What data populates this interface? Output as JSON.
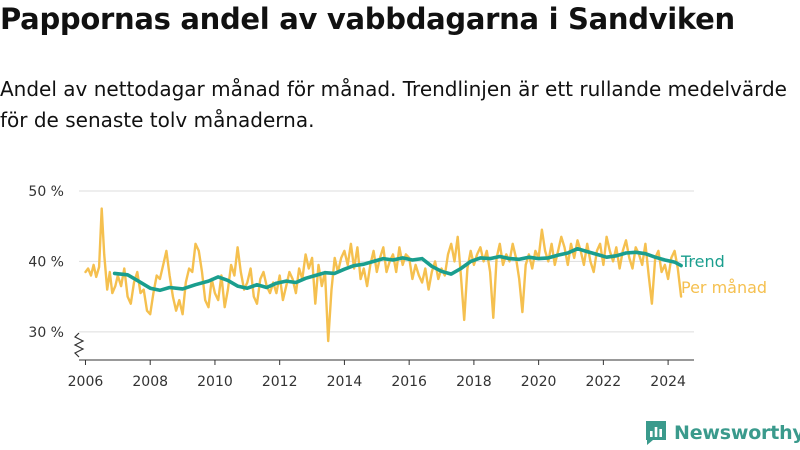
{
  "title": "Pappornas andel av vabbdagarna i Sandviken",
  "subtitle": "Andel av nettodagar månad för månad. Trendlinjen är ett rullande medelvärde för de senaste tolv månaderna.",
  "brand": {
    "name": "Newsworthy",
    "icon": "bar-chart-logo-icon"
  },
  "colors": {
    "trend": "#1a9e8e",
    "monthly": "#f5c04f",
    "grid": "#dddddd",
    "axis": "#333333"
  },
  "chart_data": {
    "type": "line",
    "y_unit": "%",
    "ylim": [
      26,
      50
    ],
    "axis_break": true,
    "y_ticks": [
      30,
      40,
      50
    ],
    "y_tick_labels": [
      "30 %",
      "40 %",
      "50 %"
    ],
    "x_range": [
      2005.8,
      2024.8
    ],
    "x_ticks": [
      2006,
      2008,
      2010,
      2012,
      2014,
      2016,
      2018,
      2020,
      2022,
      2024
    ],
    "x_tick_labels": [
      "2006",
      "2008",
      "2010",
      "2012",
      "2014",
      "2016",
      "2018",
      "2020",
      "2022",
      "2024"
    ],
    "grid": "horizontal",
    "legend_placement": "right, at line ends",
    "series": [
      {
        "name": "Trend",
        "points": [
          [
            2006.9,
            38.3
          ],
          [
            2007.3,
            38.1
          ],
          [
            2007.6,
            37.3
          ],
          [
            2008.0,
            36.2
          ],
          [
            2008.3,
            35.9
          ],
          [
            2008.6,
            36.3
          ],
          [
            2009.0,
            36.1
          ],
          [
            2009.4,
            36.7
          ],
          [
            2009.8,
            37.2
          ],
          [
            2010.1,
            37.8
          ],
          [
            2010.4,
            37.3
          ],
          [
            2010.7,
            36.5
          ],
          [
            2011.0,
            36.2
          ],
          [
            2011.3,
            36.7
          ],
          [
            2011.6,
            36.3
          ],
          [
            2011.9,
            36.9
          ],
          [
            2012.2,
            37.2
          ],
          [
            2012.5,
            37.0
          ],
          [
            2012.8,
            37.6
          ],
          [
            2013.1,
            38.0
          ],
          [
            2013.4,
            38.4
          ],
          [
            2013.7,
            38.3
          ],
          [
            2014.0,
            38.9
          ],
          [
            2014.3,
            39.4
          ],
          [
            2014.6,
            39.6
          ],
          [
            2014.9,
            40.0
          ],
          [
            2015.2,
            40.4
          ],
          [
            2015.5,
            40.2
          ],
          [
            2015.8,
            40.5
          ],
          [
            2016.1,
            40.2
          ],
          [
            2016.4,
            40.4
          ],
          [
            2016.7,
            39.3
          ],
          [
            2017.0,
            38.6
          ],
          [
            2017.3,
            38.2
          ],
          [
            2017.6,
            39.0
          ],
          [
            2017.9,
            40.0
          ],
          [
            2018.2,
            40.5
          ],
          [
            2018.5,
            40.4
          ],
          [
            2018.8,
            40.7
          ],
          [
            2019.1,
            40.4
          ],
          [
            2019.4,
            40.3
          ],
          [
            2019.7,
            40.6
          ],
          [
            2020.0,
            40.4
          ],
          [
            2020.3,
            40.5
          ],
          [
            2020.6,
            40.9
          ],
          [
            2020.9,
            41.2
          ],
          [
            2021.2,
            41.8
          ],
          [
            2021.5,
            41.4
          ],
          [
            2021.8,
            41.0
          ],
          [
            2022.1,
            40.6
          ],
          [
            2022.4,
            40.8
          ],
          [
            2022.7,
            41.2
          ],
          [
            2023.0,
            41.3
          ],
          [
            2023.3,
            41.1
          ],
          [
            2023.6,
            40.6
          ],
          [
            2023.9,
            40.2
          ],
          [
            2024.2,
            39.9
          ],
          [
            2024.4,
            39.4
          ]
        ]
      },
      {
        "name": "Per månad",
        "points": [
          [
            2006.0,
            38.5
          ],
          [
            2006.08,
            39.0
          ],
          [
            2006.17,
            38.0
          ],
          [
            2006.25,
            39.5
          ],
          [
            2006.33,
            37.8
          ],
          [
            2006.42,
            39.2
          ],
          [
            2006.5,
            47.5
          ],
          [
            2006.58,
            41.0
          ],
          [
            2006.67,
            36.0
          ],
          [
            2006.75,
            38.5
          ],
          [
            2006.83,
            35.5
          ],
          [
            2006.92,
            36.5
          ],
          [
            2007.0,
            38.0
          ],
          [
            2007.1,
            36.5
          ],
          [
            2007.2,
            39.0
          ],
          [
            2007.3,
            35.0
          ],
          [
            2007.4,
            34.0
          ],
          [
            2007.5,
            37.0
          ],
          [
            2007.6,
            38.5
          ],
          [
            2007.7,
            35.5
          ],
          [
            2007.8,
            36.0
          ],
          [
            2007.9,
            33.0
          ],
          [
            2008.0,
            32.5
          ],
          [
            2008.1,
            35.5
          ],
          [
            2008.2,
            38.0
          ],
          [
            2008.3,
            37.5
          ],
          [
            2008.4,
            39.5
          ],
          [
            2008.5,
            41.5
          ],
          [
            2008.6,
            38.0
          ],
          [
            2008.7,
            35.0
          ],
          [
            2008.8,
            33.0
          ],
          [
            2008.9,
            34.5
          ],
          [
            2009.0,
            32.5
          ],
          [
            2009.1,
            37.0
          ],
          [
            2009.2,
            39.0
          ],
          [
            2009.3,
            38.5
          ],
          [
            2009.4,
            42.5
          ],
          [
            2009.5,
            41.5
          ],
          [
            2009.6,
            38.5
          ],
          [
            2009.7,
            34.5
          ],
          [
            2009.8,
            33.5
          ],
          [
            2009.9,
            37.5
          ],
          [
            2010.0,
            35.5
          ],
          [
            2010.1,
            34.5
          ],
          [
            2010.2,
            38.0
          ],
          [
            2010.3,
            33.5
          ],
          [
            2010.4,
            36.0
          ],
          [
            2010.5,
            39.5
          ],
          [
            2010.6,
            38.0
          ],
          [
            2010.7,
            42.0
          ],
          [
            2010.8,
            38.5
          ],
          [
            2010.9,
            36.0
          ],
          [
            2011.0,
            37.0
          ],
          [
            2011.1,
            39.0
          ],
          [
            2011.2,
            35.0
          ],
          [
            2011.3,
            34.0
          ],
          [
            2011.4,
            37.5
          ],
          [
            2011.5,
            38.5
          ],
          [
            2011.6,
            36.5
          ],
          [
            2011.7,
            35.5
          ],
          [
            2011.8,
            37.0
          ],
          [
            2011.9,
            35.5
          ],
          [
            2012.0,
            38.0
          ],
          [
            2012.1,
            34.5
          ],
          [
            2012.2,
            36.5
          ],
          [
            2012.3,
            38.5
          ],
          [
            2012.4,
            37.5
          ],
          [
            2012.5,
            35.5
          ],
          [
            2012.6,
            39.0
          ],
          [
            2012.7,
            37.5
          ],
          [
            2012.8,
            41.0
          ],
          [
            2012.9,
            39.0
          ],
          [
            2013.0,
            40.5
          ],
          [
            2013.1,
            34.0
          ],
          [
            2013.2,
            39.5
          ],
          [
            2013.3,
            36.5
          ],
          [
            2013.4,
            38.5
          ],
          [
            2013.5,
            28.7
          ],
          [
            2013.6,
            36.0
          ],
          [
            2013.7,
            40.5
          ],
          [
            2013.8,
            38.5
          ],
          [
            2013.9,
            40.5
          ],
          [
            2014.0,
            41.5
          ],
          [
            2014.1,
            39.5
          ],
          [
            2014.2,
            42.5
          ],
          [
            2014.3,
            39.0
          ],
          [
            2014.4,
            42.0
          ],
          [
            2014.5,
            37.5
          ],
          [
            2014.6,
            39.0
          ],
          [
            2014.7,
            36.5
          ],
          [
            2014.8,
            39.5
          ],
          [
            2014.9,
            41.5
          ],
          [
            2015.0,
            38.5
          ],
          [
            2015.1,
            40.5
          ],
          [
            2015.2,
            42.0
          ],
          [
            2015.3,
            38.5
          ],
          [
            2015.4,
            40.0
          ],
          [
            2015.5,
            41.0
          ],
          [
            2015.6,
            38.5
          ],
          [
            2015.7,
            42.0
          ],
          [
            2015.8,
            39.5
          ],
          [
            2015.9,
            41.0
          ],
          [
            2016.0,
            40.5
          ],
          [
            2016.1,
            37.5
          ],
          [
            2016.2,
            39.5
          ],
          [
            2016.3,
            38.0
          ],
          [
            2016.4,
            37.0
          ],
          [
            2016.5,
            39.0
          ],
          [
            2016.6,
            36.0
          ],
          [
            2016.7,
            38.5
          ],
          [
            2016.8,
            40.0
          ],
          [
            2016.9,
            37.5
          ],
          [
            2017.0,
            39.0
          ],
          [
            2017.1,
            38.0
          ],
          [
            2017.2,
            41.0
          ],
          [
            2017.3,
            42.5
          ],
          [
            2017.4,
            40.0
          ],
          [
            2017.5,
            43.5
          ],
          [
            2017.6,
            38.0
          ],
          [
            2017.7,
            31.7
          ],
          [
            2017.8,
            39.0
          ],
          [
            2017.9,
            41.5
          ],
          [
            2018.0,
            39.5
          ],
          [
            2018.1,
            41.0
          ],
          [
            2018.2,
            42.0
          ],
          [
            2018.3,
            40.0
          ],
          [
            2018.4,
            41.5
          ],
          [
            2018.5,
            38.5
          ],
          [
            2018.6,
            32.0
          ],
          [
            2018.7,
            40.5
          ],
          [
            2018.8,
            42.5
          ],
          [
            2018.9,
            39.5
          ],
          [
            2019.0,
            41.0
          ],
          [
            2019.1,
            40.0
          ],
          [
            2019.2,
            42.5
          ],
          [
            2019.3,
            40.5
          ],
          [
            2019.4,
            37.5
          ],
          [
            2019.5,
            32.8
          ],
          [
            2019.6,
            39.5
          ],
          [
            2019.7,
            41.0
          ],
          [
            2019.8,
            39.0
          ],
          [
            2019.9,
            41.5
          ],
          [
            2020.0,
            40.5
          ],
          [
            2020.1,
            44.5
          ],
          [
            2020.2,
            41.5
          ],
          [
            2020.3,
            40.0
          ],
          [
            2020.4,
            42.5
          ],
          [
            2020.5,
            39.5
          ],
          [
            2020.6,
            41.5
          ],
          [
            2020.7,
            43.5
          ],
          [
            2020.8,
            42.0
          ],
          [
            2020.9,
            39.5
          ],
          [
            2021.0,
            42.5
          ],
          [
            2021.1,
            40.5
          ],
          [
            2021.2,
            43.0
          ],
          [
            2021.3,
            41.5
          ],
          [
            2021.4,
            39.5
          ],
          [
            2021.5,
            42.5
          ],
          [
            2021.6,
            40.0
          ],
          [
            2021.7,
            38.5
          ],
          [
            2021.8,
            41.5
          ],
          [
            2021.9,
            42.5
          ],
          [
            2022.0,
            39.5
          ],
          [
            2022.1,
            43.5
          ],
          [
            2022.2,
            41.5
          ],
          [
            2022.3,
            40.0
          ],
          [
            2022.4,
            42.0
          ],
          [
            2022.5,
            39.0
          ],
          [
            2022.6,
            41.5
          ],
          [
            2022.7,
            43.0
          ],
          [
            2022.8,
            40.5
          ],
          [
            2022.9,
            39.0
          ],
          [
            2023.0,
            42.0
          ],
          [
            2023.1,
            41.0
          ],
          [
            2023.2,
            39.5
          ],
          [
            2023.3,
            42.5
          ],
          [
            2023.4,
            38.0
          ],
          [
            2023.5,
            34.0
          ],
          [
            2023.6,
            40.5
          ],
          [
            2023.7,
            41.5
          ],
          [
            2023.8,
            38.5
          ],
          [
            2023.9,
            39.5
          ],
          [
            2024.0,
            37.5
          ],
          [
            2024.1,
            40.5
          ],
          [
            2024.2,
            41.5
          ],
          [
            2024.3,
            39.0
          ],
          [
            2024.4,
            35.0
          ]
        ]
      }
    ]
  }
}
